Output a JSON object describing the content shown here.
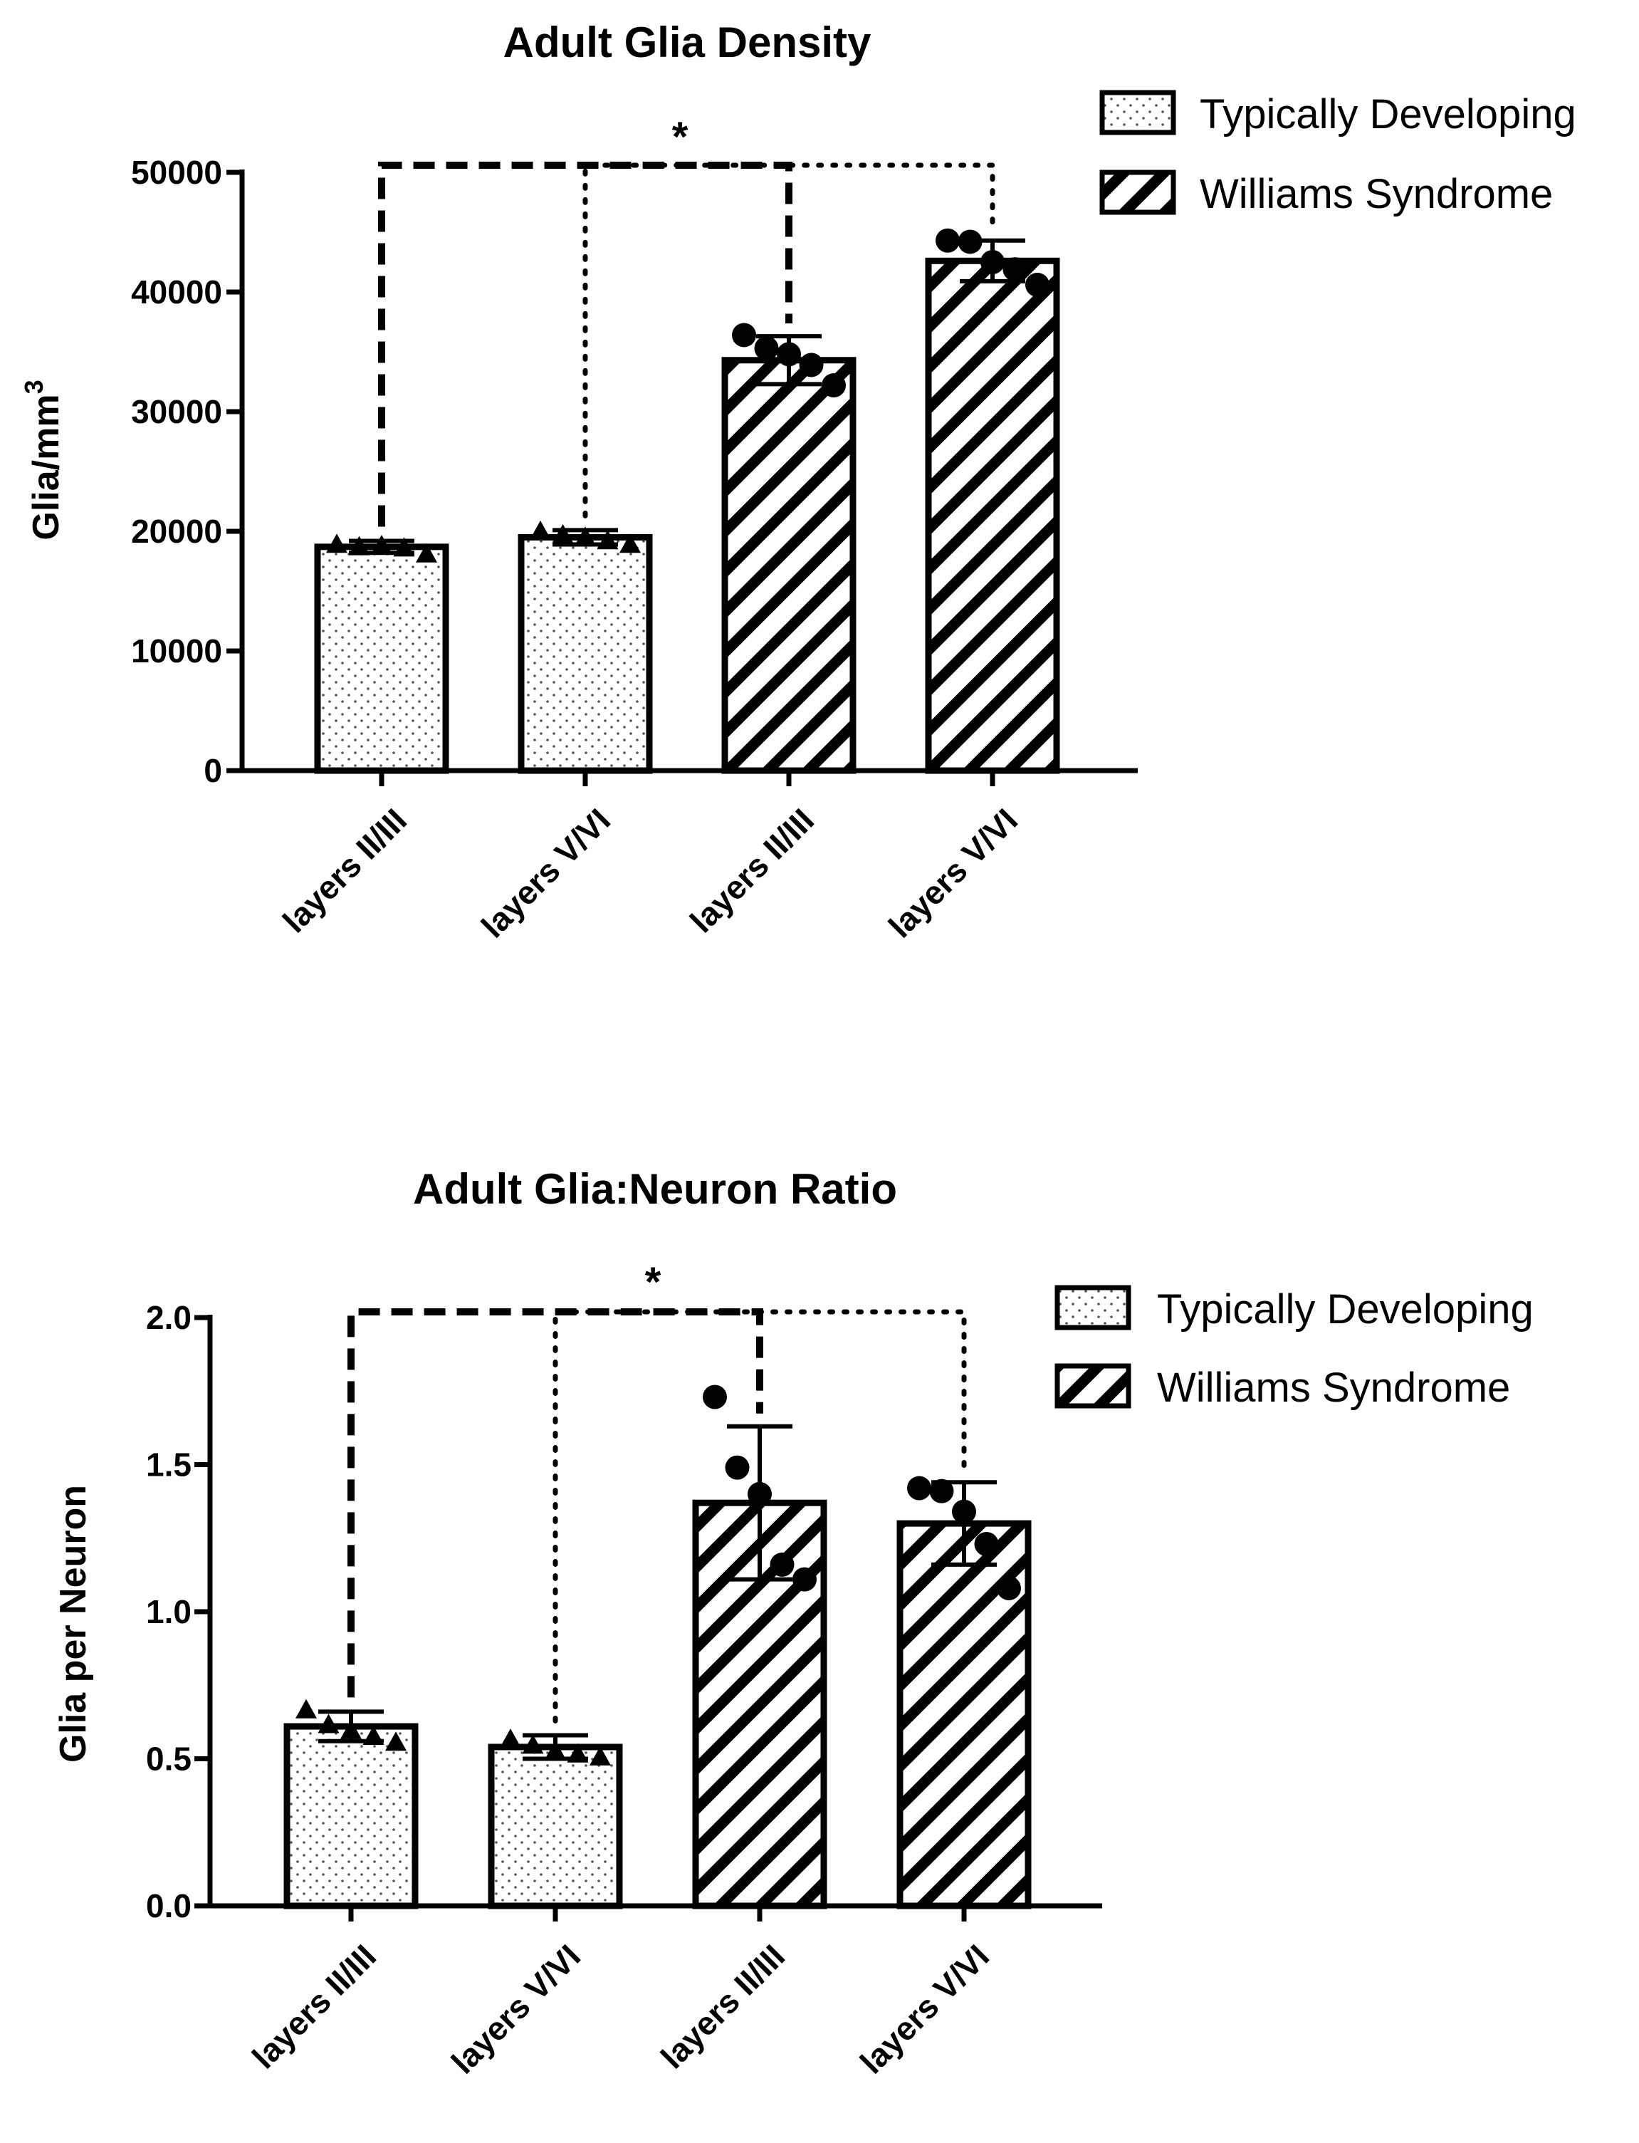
{
  "legend": {
    "typical": "Typically Developing",
    "williams": "Williams Syndrome"
  },
  "chart_data": [
    {
      "type": "bar",
      "title": "Adult Glia Density",
      "ylabel": "Glia/mm",
      "ylabel_sup": "3",
      "ylim": [
        0,
        50000
      ],
      "yticks": [
        0,
        10000,
        20000,
        30000,
        40000,
        50000
      ],
      "ytick_labels": [
        "0",
        "10000",
        "20000",
        "30000",
        "40000",
        "50000"
      ],
      "categories": [
        "layers II/III",
        "layers V/VI",
        "layers II/III",
        "layers V/VI"
      ],
      "groups": [
        "Typically Developing",
        "Typically Developing",
        "Williams Syndrome",
        "Williams Syndrome"
      ],
      "values": [
        18700,
        19500,
        34300,
        42600
      ],
      "errors": [
        500,
        600,
        2000,
        1700
      ],
      "points": [
        [
          19000,
          18800,
          18900,
          18700,
          18200
        ],
        [
          20100,
          19800,
          19600,
          19300,
          19000
        ],
        [
          36400,
          35300,
          34800,
          33900,
          32200
        ],
        [
          44300,
          44200,
          42500,
          41900,
          40600
        ]
      ],
      "significance": "*"
    },
    {
      "type": "bar",
      "title": "Adult Glia:Neuron Ratio",
      "ylabel": "Glia per Neuron",
      "ylim": [
        0,
        2.0
      ],
      "yticks": [
        0,
        0.5,
        1.0,
        1.5,
        2.0
      ],
      "ytick_labels": [
        "0.0",
        "0.5",
        "1.0",
        "1.5",
        "2.0"
      ],
      "categories": [
        "layers II/III",
        "layers V/VI",
        "layers II/III",
        "layers V/VI"
      ],
      "groups": [
        "Typically Developing",
        "Typically Developing",
        "Williams Syndrome",
        "Williams Syndrome"
      ],
      "values": [
        0.61,
        0.54,
        1.37,
        1.3
      ],
      "errors": [
        0.05,
        0.04,
        0.26,
        0.14
      ],
      "points": [
        [
          0.67,
          0.62,
          0.6,
          0.58,
          0.56
        ],
        [
          0.57,
          0.55,
          0.53,
          0.52,
          0.51
        ],
        [
          1.73,
          1.49,
          1.4,
          1.16,
          1.11
        ],
        [
          1.42,
          1.41,
          1.34,
          1.23,
          1.08
        ]
      ],
      "significance": "*"
    }
  ]
}
